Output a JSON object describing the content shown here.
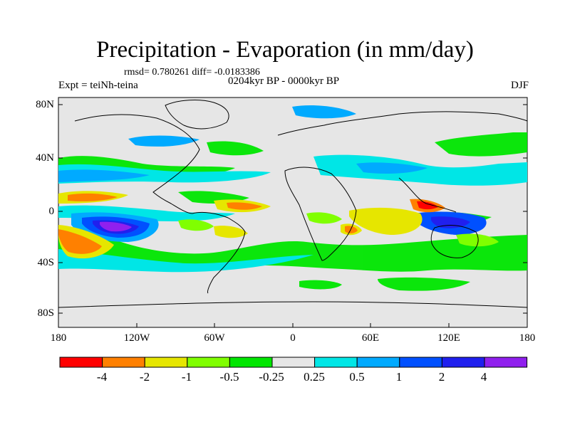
{
  "title": "Precipitation - Evaporation (in mm/day)",
  "stats": "rmsd= 0.780261 diff= -0.0183386",
  "left_label": "Expt = teiNh-teina",
  "center_label": "0204kyr BP - 0000kyr BP",
  "right_label": "DJF",
  "lat_ticks": [
    "80N",
    "40N",
    "0",
    "40S",
    "80S"
  ],
  "lon_ticks": [
    "180",
    "120W",
    "60W",
    "0",
    "60E",
    "120E",
    "180"
  ],
  "colorbar": {
    "labels": [
      "-4",
      "-2",
      "-1",
      "-0.5",
      "-0.25",
      "0.25",
      "0.5",
      "1",
      "2",
      "4"
    ],
    "colors": [
      "#ff0000",
      "#ff8000",
      "#e6e600",
      "#80ff00",
      "#00e600",
      "#e6e6e6",
      "#00e6e6",
      "#00aaff",
      "#0050ff",
      "#2020ee",
      "#9020ee"
    ]
  }
}
